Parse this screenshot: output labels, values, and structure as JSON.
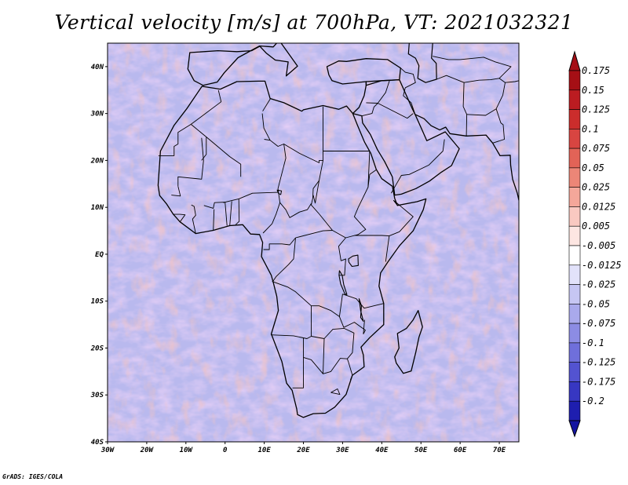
{
  "title": "Vertical velocity [m/s] at 700hPa, VT: 2021032321",
  "credit": "GrADS: IGES/COLA",
  "map": {
    "lon_range": [
      -30,
      75
    ],
    "lat_range": [
      -40,
      45
    ],
    "x_ticks": [
      {
        "lon": -30,
        "label": "30W"
      },
      {
        "lon": -20,
        "label": "20W"
      },
      {
        "lon": -10,
        "label": "10W"
      },
      {
        "lon": 0,
        "label": "0"
      },
      {
        "lon": 10,
        "label": "10E"
      },
      {
        "lon": 20,
        "label": "20E"
      },
      {
        "lon": 30,
        "label": "30E"
      },
      {
        "lon": 40,
        "label": "40E"
      },
      {
        "lon": 50,
        "label": "50E"
      },
      {
        "lon": 60,
        "label": "60E"
      },
      {
        "lon": 70,
        "label": "70E"
      }
    ],
    "y_ticks": [
      {
        "lat": 40,
        "label": "40N"
      },
      {
        "lat": 30,
        "label": "30N"
      },
      {
        "lat": 20,
        "label": "20N"
      },
      {
        "lat": 10,
        "label": "10N"
      },
      {
        "lat": 0,
        "label": "EQ"
      },
      {
        "lat": -10,
        "label": "10S"
      },
      {
        "lat": -20,
        "label": "20S"
      },
      {
        "lat": -30,
        "label": "30S"
      },
      {
        "lat": -40,
        "label": "40S"
      }
    ]
  },
  "colorbar": {
    "levels": [
      {
        "label": "0.175",
        "color": "#a50f15"
      },
      {
        "label": "0.15",
        "color": "#bb1c21"
      },
      {
        "label": "0.125",
        "color": "#cb2d2c"
      },
      {
        "label": "0.1",
        "color": "#d84541"
      },
      {
        "label": "0.075",
        "color": "#e26357"
      },
      {
        "label": "0.05",
        "color": "#ec8677"
      },
      {
        "label": "0.025",
        "color": "#f4a79a"
      },
      {
        "label": "0.0125",
        "color": "#f9c9c1"
      },
      {
        "label": "0.005",
        "color": "#fde6e2"
      },
      {
        "label": "-0.005",
        "color": "#ffffff"
      },
      {
        "label": "-0.0125",
        "color": "#e2e2fa"
      },
      {
        "label": "-0.025",
        "color": "#c6c6f3"
      },
      {
        "label": "-0.05",
        "color": "#a9a9ec"
      },
      {
        "label": "-0.075",
        "color": "#8c8ce4"
      },
      {
        "label": "-0.1",
        "color": "#6f6fdb"
      },
      {
        "label": "-0.125",
        "color": "#5353d1"
      },
      {
        "label": "-0.175",
        "color": "#3737c2"
      },
      {
        "label": "-0.2",
        "color": "#1e1eaf"
      }
    ],
    "top_color": "#a50f15",
    "bottom_color": "#1414a0"
  }
}
